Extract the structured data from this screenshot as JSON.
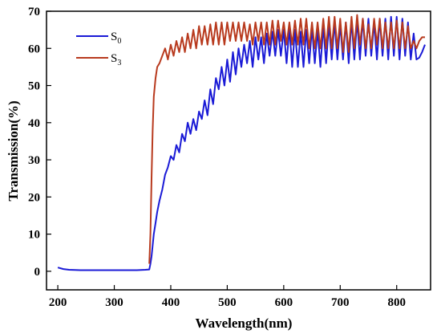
{
  "chart_data": {
    "type": "line",
    "xlabel": "Wavelength(nm)",
    "ylabel": "Transmission(%)",
    "xlim": [
      180,
      860
    ],
    "ylim": [
      -5,
      70
    ],
    "xticks": [
      200,
      300,
      400,
      500,
      600,
      700,
      800
    ],
    "yticks": [
      0,
      10,
      20,
      30,
      40,
      50,
      60,
      70
    ],
    "legend_position": "top-left",
    "grid": false,
    "series": [
      {
        "name": "S0",
        "label_base": "S",
        "label_sub": "0",
        "color": "#1a1ad6",
        "x": [
          200,
          210,
          220,
          240,
          260,
          280,
          300,
          320,
          340,
          355,
          362,
          364,
          366,
          368,
          370,
          373,
          376,
          380,
          385,
          390,
          395,
          400,
          405,
          410,
          415,
          420,
          425,
          430,
          435,
          440,
          445,
          450,
          455,
          460,
          465,
          470,
          475,
          480,
          485,
          490,
          495,
          500,
          505,
          510,
          515,
          520,
          525,
          530,
          535,
          540,
          545,
          550,
          555,
          560,
          565,
          570,
          575,
          580,
          585,
          590,
          595,
          600,
          605,
          610,
          615,
          620,
          625,
          630,
          635,
          640,
          645,
          650,
          655,
          660,
          665,
          670,
          675,
          680,
          685,
          690,
          695,
          700,
          705,
          710,
          715,
          720,
          725,
          730,
          735,
          740,
          745,
          750,
          755,
          760,
          765,
          770,
          775,
          780,
          785,
          790,
          795,
          800,
          805,
          810,
          815,
          820,
          825,
          830,
          835,
          840,
          845,
          850
        ],
        "y": [
          1.0,
          0.6,
          0.4,
          0.3,
          0.3,
          0.3,
          0.3,
          0.3,
          0.3,
          0.4,
          0.5,
          2,
          4,
          7,
          10,
          13,
          16,
          19,
          22,
          26,
          28,
          31,
          30,
          34,
          32,
          37,
          35,
          40,
          37,
          41,
          38,
          43,
          41,
          46,
          42,
          49,
          45,
          52,
          49,
          55,
          50,
          57,
          51,
          59,
          53,
          60,
          55,
          61,
          56,
          62,
          55,
          63,
          57,
          63,
          56,
          64,
          58,
          64.5,
          58,
          65,
          58,
          65,
          56,
          65.5,
          55,
          65,
          55,
          64.5,
          55,
          65,
          56,
          65.5,
          56,
          65,
          55,
          66,
          56,
          66.5,
          57,
          67,
          57,
          66.5,
          57,
          67,
          56,
          67.5,
          57,
          67.5,
          57,
          68,
          58,
          68,
          58,
          67,
          57,
          68,
          58,
          68,
          57,
          68.5,
          58,
          68.5,
          57,
          68,
          58,
          67,
          57,
          64,
          57,
          57.5,
          59,
          61
        ]
      },
      {
        "name": "S3",
        "label_base": "S",
        "label_sub": "3",
        "color": "#b83a1e",
        "x": [
          362,
          364,
          366,
          368,
          370,
          373,
          376,
          380,
          385,
          390,
          395,
          400,
          405,
          410,
          415,
          420,
          425,
          430,
          435,
          440,
          445,
          450,
          455,
          460,
          465,
          470,
          475,
          480,
          485,
          490,
          495,
          500,
          505,
          510,
          515,
          520,
          525,
          530,
          535,
          540,
          545,
          550,
          555,
          560,
          565,
          570,
          575,
          580,
          585,
          590,
          595,
          600,
          605,
          610,
          615,
          620,
          625,
          630,
          635,
          640,
          645,
          650,
          655,
          660,
          665,
          670,
          675,
          680,
          685,
          690,
          695,
          700,
          705,
          710,
          715,
          720,
          725,
          730,
          735,
          740,
          745,
          750,
          755,
          760,
          765,
          770,
          775,
          780,
          785,
          790,
          795,
          800,
          805,
          810,
          815,
          820,
          825,
          830,
          835,
          840,
          845,
          850
        ],
        "y": [
          2,
          10,
          25,
          38,
          47,
          52,
          55,
          56,
          58,
          60,
          57,
          61,
          58,
          62,
          59,
          63,
          59,
          64,
          60,
          65,
          60,
          66,
          61,
          66,
          61,
          66.5,
          61,
          67,
          61,
          67,
          61,
          67,
          62,
          67,
          62,
          67,
          62,
          67,
          62,
          66.5,
          61,
          67,
          62,
          67,
          61,
          67,
          61,
          67.5,
          61,
          67.5,
          62,
          67,
          61,
          67,
          61,
          67.5,
          61,
          68,
          61,
          68,
          60,
          67,
          60,
          67,
          60,
          68,
          60,
          68.5,
          60,
          68.5,
          60,
          68,
          59,
          67,
          59,
          68.5,
          60,
          69,
          61,
          68,
          60,
          66.5,
          60,
          68,
          61,
          68,
          60,
          67,
          60,
          67,
          60,
          67.5,
          60,
          67,
          60,
          66,
          60,
          62,
          60,
          62,
          63,
          63
        ]
      }
    ]
  }
}
